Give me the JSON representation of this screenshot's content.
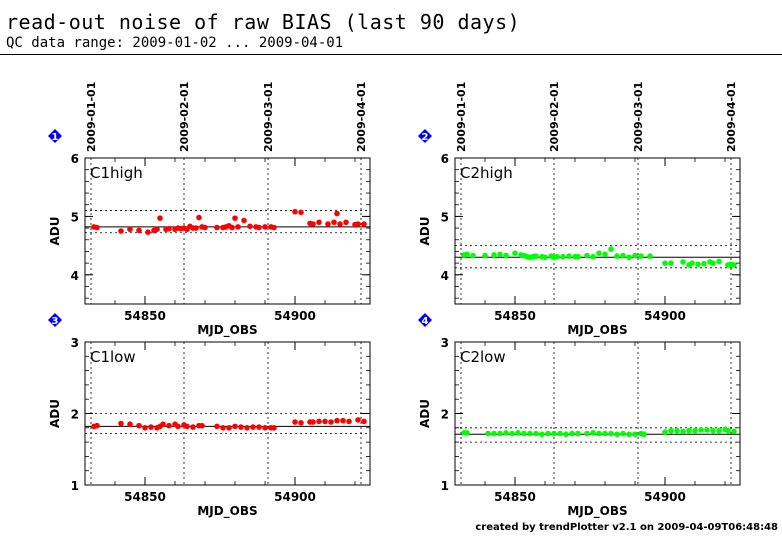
{
  "header": {
    "title": "read-out noise of raw BIAS (last 90 days)",
    "subtitle": "QC data range: 2009-01-02 ... 2009-04-01"
  },
  "footer": {
    "text": "created by trendPlotter v2.1 on 2009-04-09T06:48:48"
  },
  "colors": {
    "red_points": "#ff0000",
    "green_points": "#00ff00",
    "marker": "#0000ff"
  },
  "chart_data": [
    {
      "type": "scatter",
      "marker": "1",
      "label": "C1high",
      "color": "#ff0000",
      "xlabel": "MJD_OBS",
      "ylabel": "ADU",
      "xlim": [
        54830,
        54925
      ],
      "ylim": [
        3.5,
        6
      ],
      "xticks": [
        54850,
        54900
      ],
      "yticks": [
        4,
        5,
        6
      ],
      "date_ticks": [
        {
          "label": "2009-01-01",
          "x": 54832
        },
        {
          "label": "2009-02-01",
          "x": 54863
        },
        {
          "label": "2009-03-01",
          "x": 54891
        },
        {
          "label": "2009-04-01",
          "x": 54922
        }
      ],
      "mean": 4.82,
      "dotted_levels": [
        5.1,
        4.72
      ],
      "x": [
        54833,
        54834,
        54842,
        54845,
        54848,
        54851,
        54853,
        54854,
        54855,
        54857,
        54858,
        54860,
        54861,
        54862,
        54863,
        54864,
        54865,
        54866,
        54867,
        54868,
        54869,
        54870,
        54874,
        54876,
        54877,
        54878,
        54879,
        54880,
        54881,
        54883,
        54885,
        54887,
        54888,
        54890,
        54892,
        54893,
        54900,
        54902,
        54905,
        54906,
        54908,
        54911,
        54913,
        54914,
        54915,
        54917,
        54920,
        54921,
        54923
      ],
      "y": [
        4.82,
        4.81,
        4.75,
        4.78,
        4.76,
        4.73,
        4.76,
        4.78,
        4.97,
        4.78,
        4.79,
        4.78,
        4.8,
        4.79,
        4.8,
        4.78,
        4.83,
        4.8,
        4.8,
        4.98,
        4.82,
        4.81,
        4.81,
        4.81,
        4.82,
        4.84,
        4.81,
        4.97,
        4.82,
        4.93,
        4.83,
        4.82,
        4.81,
        4.82,
        4.82,
        4.81,
        5.08,
        5.07,
        4.88,
        4.87,
        4.9,
        4.87,
        4.9,
        5.05,
        4.87,
        4.9,
        4.86,
        4.87,
        4.87
      ]
    },
    {
      "type": "scatter",
      "marker": "2",
      "label": "C2high",
      "color": "#00ff00",
      "xlabel": "MJD_OBS",
      "ylabel": "ADU",
      "xlim": [
        54830,
        54925
      ],
      "ylim": [
        3.5,
        6
      ],
      "xticks": [
        54850,
        54900
      ],
      "yticks": [
        4,
        5,
        6
      ],
      "date_ticks": [
        {
          "label": "2009-01-01",
          "x": 54832
        },
        {
          "label": "2009-02-01",
          "x": 54863
        },
        {
          "label": "2009-03-01",
          "x": 54891
        },
        {
          "label": "2009-04-01",
          "x": 54922
        }
      ],
      "mean": 4.3,
      "dotted_levels": [
        4.5,
        4.12
      ],
      "x": [
        54833,
        54834,
        54836,
        54840,
        54843,
        54845,
        54847,
        54850,
        54852,
        54853,
        54854,
        54855,
        54856,
        54857,
        54859,
        54860,
        54862,
        54863,
        54864,
        54866,
        54868,
        54870,
        54871,
        54874,
        54876,
        54878,
        54880,
        54882,
        54884,
        54886,
        54888,
        54890,
        54892,
        54895,
        54900,
        54902,
        54906,
        54908,
        54909,
        54911,
        54913,
        54915,
        54916,
        54918,
        54921,
        54922,
        54923
      ],
      "y": [
        4.34,
        4.35,
        4.33,
        4.33,
        4.34,
        4.35,
        4.33,
        4.37,
        4.34,
        4.33,
        4.31,
        4.3,
        4.31,
        4.32,
        4.31,
        4.3,
        4.32,
        4.3,
        4.31,
        4.31,
        4.32,
        4.31,
        4.31,
        4.33,
        4.31,
        4.37,
        4.35,
        4.44,
        4.32,
        4.33,
        4.3,
        4.33,
        4.32,
        4.32,
        4.2,
        4.2,
        4.22,
        4.17,
        4.2,
        4.18,
        4.19,
        4.22,
        4.2,
        4.23,
        4.17,
        4.18,
        4.17
      ]
    },
    {
      "type": "scatter",
      "marker": "3",
      "label": "C1low",
      "color": "#ff0000",
      "xlabel": "MJD_OBS",
      "ylabel": "ADU",
      "xlim": [
        54830,
        54925
      ],
      "ylim": [
        1,
        3
      ],
      "xticks": [
        54850,
        54900
      ],
      "yticks": [
        1,
        2,
        3
      ],
      "mean": 1.82,
      "dotted_levels": [
        2.0,
        1.72
      ],
      "x": [
        54833,
        54834,
        54842,
        54845,
        54848,
        54850,
        54852,
        54854,
        54855,
        54856,
        54858,
        54860,
        54861,
        54863,
        54864,
        54866,
        54868,
        54869,
        54874,
        54876,
        54878,
        54880,
        54882,
        54884,
        54886,
        54888,
        54890,
        54892,
        54893,
        54900,
        54902,
        54905,
        54906,
        54908,
        54910,
        54912,
        54914,
        54916,
        54918,
        54921,
        54923
      ],
      "y": [
        1.82,
        1.83,
        1.86,
        1.85,
        1.83,
        1.8,
        1.81,
        1.8,
        1.82,
        1.85,
        1.83,
        1.85,
        1.82,
        1.84,
        1.82,
        1.81,
        1.83,
        1.83,
        1.82,
        1.8,
        1.8,
        1.82,
        1.81,
        1.8,
        1.81,
        1.81,
        1.8,
        1.8,
        1.8,
        1.88,
        1.87,
        1.88,
        1.88,
        1.89,
        1.89,
        1.88,
        1.9,
        1.9,
        1.89,
        1.91,
        1.89
      ]
    },
    {
      "type": "scatter",
      "marker": "4",
      "label": "C2low",
      "color": "#00ff00",
      "xlabel": "MJD_OBS",
      "ylabel": "ADU",
      "xlim": [
        54830,
        54925
      ],
      "ylim": [
        1,
        3
      ],
      "xticks": [
        54850,
        54900
      ],
      "yticks": [
        1,
        2,
        3
      ],
      "mean": 1.71,
      "dotted_levels": [
        1.8,
        1.6
      ],
      "x": [
        54833,
        54834,
        54841,
        54843,
        54845,
        54847,
        54849,
        54851,
        54853,
        54855,
        54857,
        54859,
        54861,
        54863,
        54865,
        54867,
        54869,
        54871,
        54874,
        54876,
        54878,
        54880,
        54882,
        54884,
        54886,
        54888,
        54890,
        54892,
        54893,
        54900,
        54902,
        54904,
        54906,
        54908,
        54910,
        54912,
        54914,
        54916,
        54918,
        54920,
        54921,
        54923
      ],
      "y": [
        1.73,
        1.73,
        1.72,
        1.72,
        1.72,
        1.73,
        1.72,
        1.73,
        1.72,
        1.72,
        1.72,
        1.71,
        1.72,
        1.72,
        1.72,
        1.71,
        1.72,
        1.72,
        1.72,
        1.73,
        1.72,
        1.72,
        1.72,
        1.71,
        1.72,
        1.71,
        1.71,
        1.72,
        1.71,
        1.74,
        1.76,
        1.76,
        1.75,
        1.76,
        1.76,
        1.77,
        1.77,
        1.76,
        1.76,
        1.78,
        1.76,
        1.75
      ]
    }
  ]
}
